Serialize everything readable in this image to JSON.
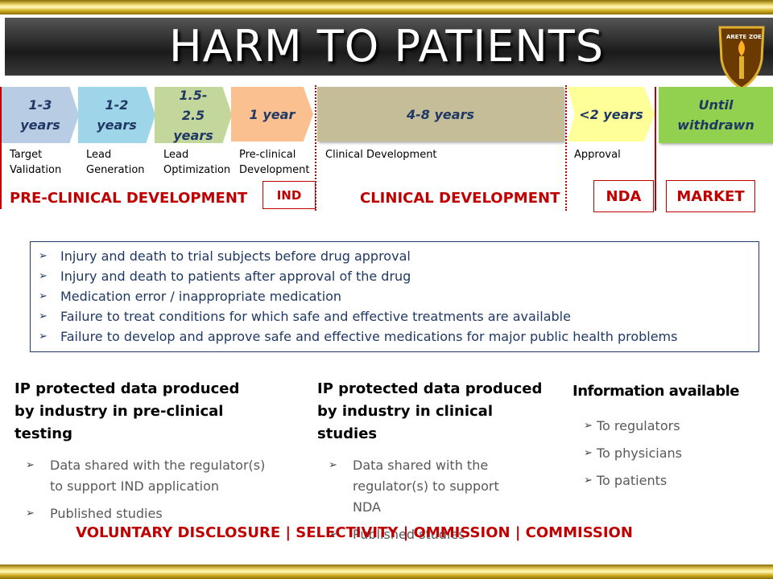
{
  "title": "HARM TO PATIENTS",
  "logo": {
    "left": "ARETE",
    "right": "ZOE"
  },
  "stages": [
    {
      "duration": "1-3 years",
      "label": "Target Validation"
    },
    {
      "duration": "1-2 years",
      "label": "Lead Generation"
    },
    {
      "duration": "1.5-2.5 years",
      "label": "Lead Optimization"
    },
    {
      "duration": "1 year",
      "label": "Pre-clinical Development"
    },
    {
      "duration": "4-8 years",
      "label": "Clinical Development"
    },
    {
      "duration": "<2 years",
      "label": "Approval"
    },
    {
      "duration": "Until withdrawn"
    }
  ],
  "phases": [
    "PRE-CLINICAL DEVELOPMENT",
    "IND",
    "CLINICAL DEVELOPMENT",
    "NDA",
    "MARKET"
  ],
  "harms": [
    "Injury and death to trial subjects before drug approval",
    "Injury and death to patients after approval of the drug",
    "Medication error / inappropriate medication",
    "Failure to treat conditions for which safe and effective  treatments are available",
    "Failure to develop and approve  safe and effective  medications for major public health problems"
  ],
  "columns": [
    {
      "heading": "IP protected data produced by industry in pre-clinical testing",
      "items": [
        "Data shared with the regulator(s) to support IND application",
        "Published studies"
      ]
    },
    {
      "heading": "IP protected data produced by industry in clinical studies",
      "items": [
        "Data shared with the regulator(s) to support NDA",
        "Published studies"
      ]
    },
    {
      "heading": "Information available",
      "items": [
        "To regulators",
        "To physicians",
        "To patients"
      ]
    }
  ],
  "footer": "VOLUNTARY DISCLOSURE | SELECTIVITY | OMMISSION | COMMISSION"
}
